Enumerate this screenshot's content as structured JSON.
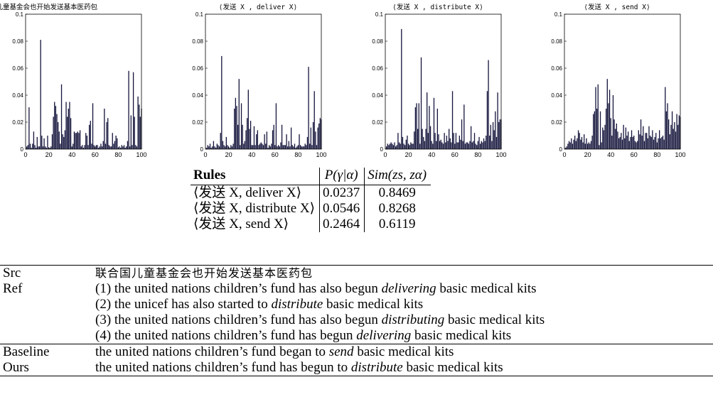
{
  "chart_data": [
    {
      "type": "bar",
      "title": "联合国儿童基金会也开始发送基本医药包",
      "xlim": [
        0,
        100
      ],
      "ylim": [
        0,
        0.1
      ],
      "xticks": [
        "0",
        "20",
        "40",
        "60",
        "80",
        "100"
      ],
      "yticks": [
        "0",
        "0.02",
        "0.04",
        "0.06",
        "0.08",
        "0.1"
      ],
      "values": [
        0.002,
        0.003,
        0.031,
        0.004,
        0.001,
        0.004,
        0.013,
        0.003,
        0.001,
        0.009,
        0.002,
        0.002,
        0.081,
        0.01,
        0.002,
        0.008,
        0.002,
        0.001,
        0.01,
        0.001,
        0.001,
        0.002,
        0.011,
        0.024,
        0.035,
        0.032,
        0.026,
        0.02,
        0.013,
        0.004,
        0.048,
        0.011,
        0.009,
        0.014,
        0.035,
        0.024,
        0.03,
        0.035,
        0.023,
        0.002,
        0.004,
        0.013,
        0.012,
        0.012,
        0.013,
        0.012,
        0.014,
        0.002,
        0.003,
        0.001,
        0.003,
        0.012,
        0.01,
        0.003,
        0.018,
        0.021,
        0.004,
        0.034,
        0.003,
        0.002,
        0.003,
        0.003,
        0.001,
        0.002,
        0.004,
        0.002,
        0.006,
        0.03,
        0.004,
        0.02,
        0.023,
        0.003,
        0.002,
        0.002,
        0.012,
        0.004,
        0.006,
        0.01,
        0.008,
        0.001,
        0.002,
        0.001,
        0.003,
        0.002,
        0.003,
        0.001,
        0.002,
        0.006,
        0.058,
        0.002,
        0.025,
        0.003,
        0.057,
        0.024,
        0.003,
        0.002,
        0.039,
        0.033,
        0.024,
        0.03
      ]
    },
    {
      "type": "bar",
      "title": "⟨发送 X , deliver X⟩",
      "xlim": [
        0,
        100
      ],
      "ylim": [
        0,
        0.1
      ],
      "xticks": [
        "0",
        "20",
        "40",
        "60",
        "80",
        "100"
      ],
      "yticks": [
        "0",
        "0.02",
        "0.04",
        "0.06",
        "0.08",
        "0.1"
      ],
      "values": [
        0.001,
        0.003,
        0.002,
        0.004,
        0.001,
        0.002,
        0.006,
        0.002,
        0.001,
        0.004,
        0.003,
        0.002,
        0.012,
        0.069,
        0.006,
        0.003,
        0.002,
        0.009,
        0.003,
        0.002,
        0.001,
        0.003,
        0.002,
        0.004,
        0.03,
        0.038,
        0.032,
        0.018,
        0.052,
        0.003,
        0.034,
        0.018,
        0.004,
        0.006,
        0.014,
        0.023,
        0.044,
        0.015,
        0.021,
        0.003,
        0.003,
        0.017,
        0.003,
        0.011,
        0.014,
        0.003,
        0.004,
        0.005,
        0.004,
        0.003,
        0.011,
        0.004,
        0.013,
        0.001,
        0.003,
        0.002,
        0.004,
        0.014,
        0.018,
        0.003,
        0.034,
        0.002,
        0.003,
        0.002,
        0.005,
        0.018,
        0.003,
        0.003,
        0.003,
        0.011,
        0.002,
        0.006,
        0.002,
        0.016,
        0.003,
        0.002,
        0.004,
        0.001,
        0.002,
        0.003,
        0.011,
        0.003,
        0.002,
        0.002,
        0.002,
        0.004,
        0.003,
        0.009,
        0.061,
        0.004,
        0.016,
        0.003,
        0.02,
        0.043,
        0.013,
        0.003,
        0.016,
        0.019,
        0.023,
        0.022
      ]
    },
    {
      "type": "bar",
      "title": "⟨发送 X , distribute X⟩",
      "xlim": [
        0,
        100
      ],
      "ylim": [
        0,
        0.1
      ],
      "xticks": [
        "0",
        "20",
        "40",
        "60",
        "80",
        "100"
      ],
      "yticks": [
        "0",
        "0.02",
        "0.04",
        "0.06",
        "0.08",
        "0.1"
      ],
      "values": [
        0.002,
        0.004,
        0.003,
        0.004,
        0.005,
        0.004,
        0.003,
        0.005,
        0.002,
        0.003,
        0.012,
        0.005,
        0.004,
        0.089,
        0.009,
        0.004,
        0.003,
        0.007,
        0.01,
        0.004,
        0.003,
        0.005,
        0.004,
        0.004,
        0.013,
        0.031,
        0.034,
        0.015,
        0.034,
        0.004,
        0.068,
        0.015,
        0.009,
        0.006,
        0.015,
        0.042,
        0.012,
        0.032,
        0.017,
        0.006,
        0.004,
        0.038,
        0.012,
        0.006,
        0.03,
        0.011,
        0.006,
        0.007,
        0.005,
        0.004,
        0.012,
        0.005,
        0.01,
        0.006,
        0.015,
        0.008,
        0.005,
        0.043,
        0.012,
        0.004,
        0.012,
        0.005,
        0.005,
        0.01,
        0.007,
        0.022,
        0.006,
        0.033,
        0.004,
        0.005,
        0.005,
        0.004,
        0.006,
        0.017,
        0.005,
        0.006,
        0.012,
        0.004,
        0.003,
        0.006,
        0.009,
        0.004,
        0.006,
        0.005,
        0.008,
        0.006,
        0.01,
        0.043,
        0.066,
        0.01,
        0.018,
        0.006,
        0.02,
        0.014,
        0.028,
        0.009,
        0.042,
        0.02,
        0.022,
        0.022
      ]
    },
    {
      "type": "bar",
      "title": "⟨发送 X , send X⟩",
      "xlim": [
        0,
        100
      ],
      "ylim": [
        0,
        0.1
      ],
      "xticks": [
        "0",
        "20",
        "40",
        "60",
        "80",
        "100"
      ],
      "yticks": [
        "0",
        "0.02",
        "0.04",
        "0.06",
        "0.08",
        "0.1"
      ],
      "values": [
        0.001,
        0.002,
        0.004,
        0.006,
        0.005,
        0.008,
        0.004,
        0.007,
        0.01,
        0.006,
        0.008,
        0.014,
        0.012,
        0.007,
        0.009,
        0.005,
        0.011,
        0.004,
        0.008,
        0.004,
        0.005,
        0.004,
        0.006,
        0.01,
        0.026,
        0.028,
        0.046,
        0.03,
        0.048,
        0.003,
        0.028,
        0.005,
        0.016,
        0.014,
        0.018,
        0.03,
        0.052,
        0.034,
        0.044,
        0.023,
        0.01,
        0.04,
        0.022,
        0.015,
        0.019,
        0.013,
        0.008,
        0.009,
        0.012,
        0.007,
        0.018,
        0.008,
        0.016,
        0.01,
        0.013,
        0.006,
        0.009,
        0.014,
        0.009,
        0.01,
        0.006,
        0.005,
        0.006,
        0.014,
        0.011,
        0.022,
        0.01,
        0.017,
        0.006,
        0.012,
        0.012,
        0.008,
        0.017,
        0.01,
        0.009,
        0.014,
        0.007,
        0.009,
        0.012,
        0.005,
        0.008,
        0.014,
        0.008,
        0.009,
        0.01,
        0.007,
        0.046,
        0.028,
        0.034,
        0.022,
        0.011,
        0.018,
        0.028,
        0.015,
        0.02,
        0.013,
        0.026,
        0.018,
        0.025,
        0.024
      ]
    }
  ],
  "rules_table": {
    "headers": [
      "Rules",
      "P(γ|α)",
      "Sim(zs, zα)"
    ],
    "rows": [
      {
        "rule": "⟨发送 X, deliver X⟩",
        "p": "0.0237",
        "sim": "0.8469"
      },
      {
        "rule": "⟨发送 X, distribute X⟩",
        "p": "0.0546",
        "sim": "0.8268"
      },
      {
        "rule": "⟨发送 X, send X⟩",
        "p": "0.2464",
        "sim": "0.6119"
      }
    ]
  },
  "examples": {
    "src": {
      "label": "Src",
      "text": "联合国儿童基金会也开始发送基本医药包"
    },
    "ref": {
      "label": "Ref",
      "lines": [
        {
          "pre": "(1) the united nations children’s fund has also begun ",
          "em": "delivering",
          "post": " basic medical kits"
        },
        {
          "pre": "(2) the unicef has also started to ",
          "em": "distribute",
          "post": " basic medical kits"
        },
        {
          "pre": "(3) the united nations children’s fund has also begun ",
          "em": "distributing",
          "post": " basic medical kits"
        },
        {
          "pre": "(4) the united nations children’s fund has begun ",
          "em": "delivering",
          "post": " basic medical kits"
        }
      ]
    },
    "baseline": {
      "label": "Baseline",
      "pre": "the united nations children’s fund began to ",
      "em": "send",
      "post": " basic medical kits"
    },
    "ours": {
      "label": "Ours",
      "pre": "the united nations children’s fund has begun to ",
      "em": "distribute",
      "post": " basic medical kits"
    }
  },
  "colors": {
    "bar": "#14143c",
    "axis": "#000000"
  }
}
